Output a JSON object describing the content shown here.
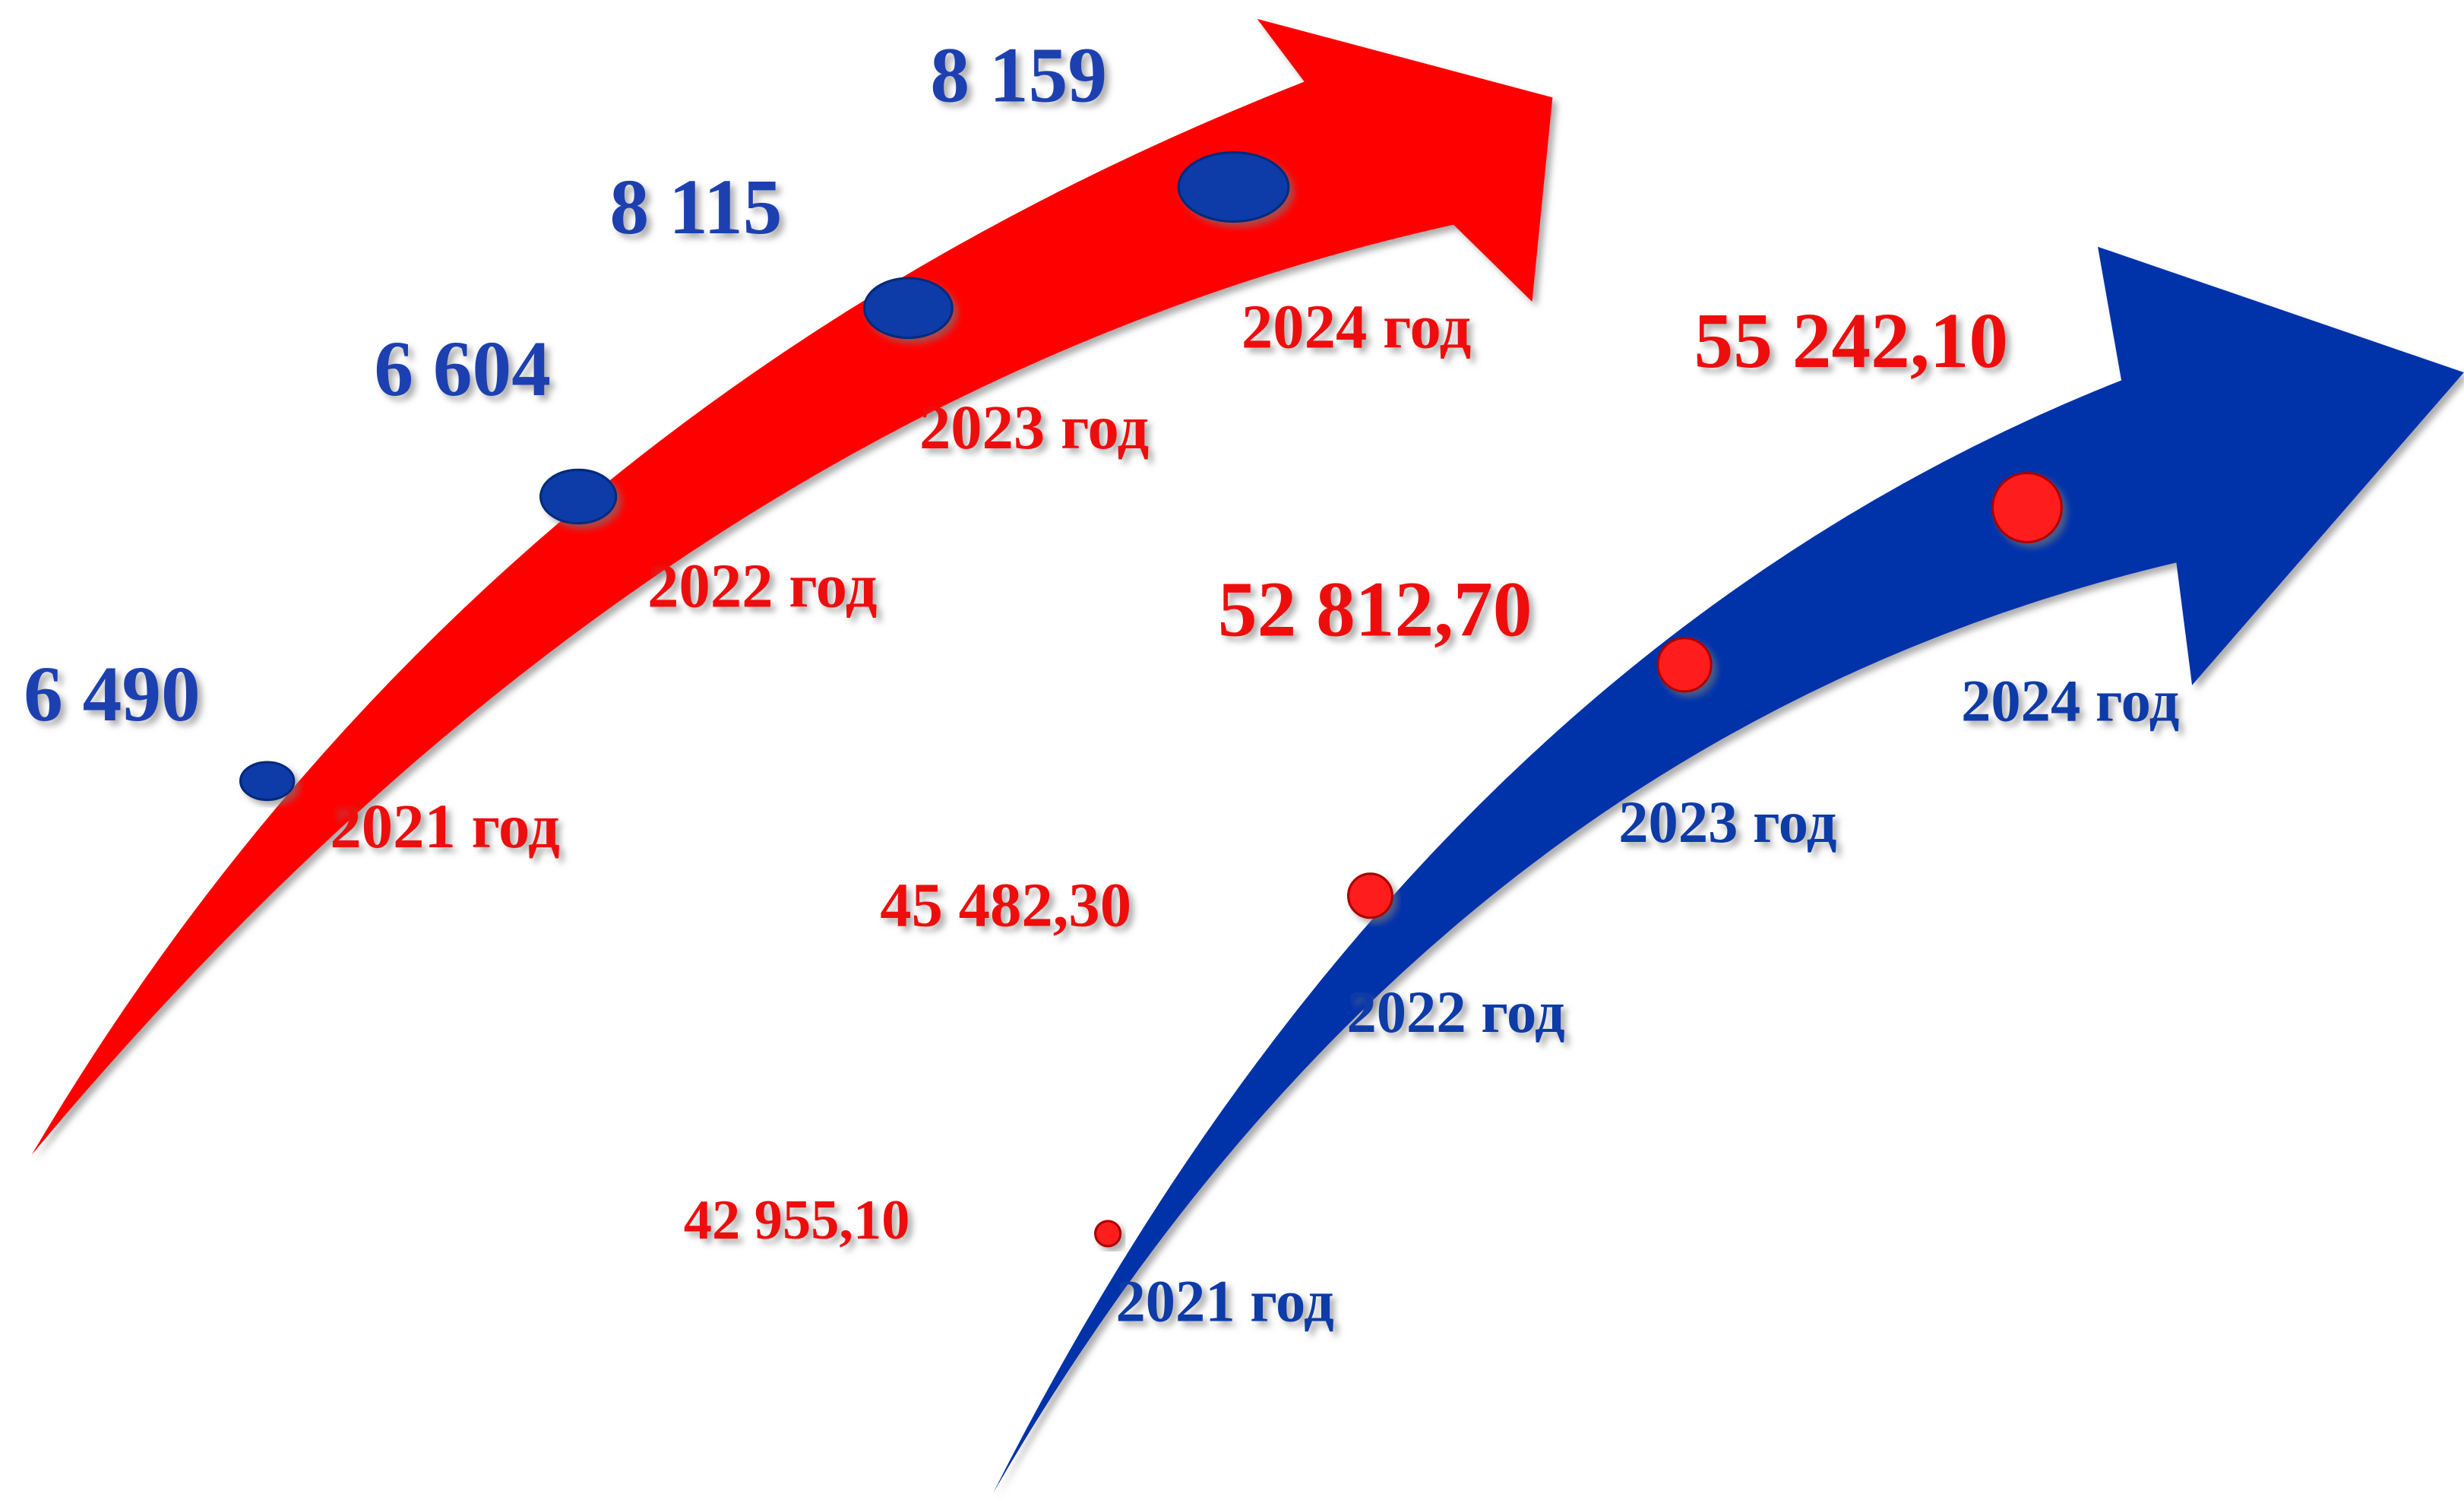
{
  "left": {
    "items": [
      {
        "value": "6 490",
        "year": "2021 год"
      },
      {
        "value": "6 604",
        "year": "2022 год"
      },
      {
        "value": "8 115",
        "year": "2023 год"
      },
      {
        "value": "8 159",
        "year": "2024 год"
      }
    ]
  },
  "right": {
    "items": [
      {
        "value": "42 955,10",
        "year": "2021 год"
      },
      {
        "value": "45 482,30",
        "year": "2022 год"
      },
      {
        "value": "52 812,70",
        "year": "2023 год"
      },
      {
        "value": "55 242,10",
        "year": "2024 год"
      }
    ]
  }
}
